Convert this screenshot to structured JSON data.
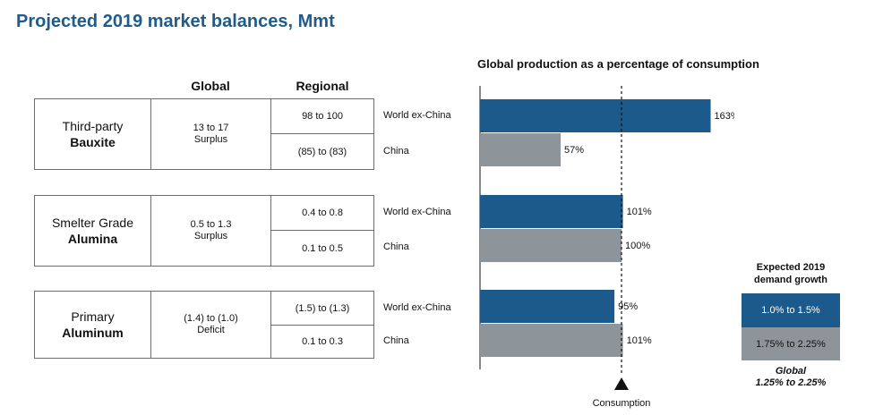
{
  "title": "Projected 2019 market balances, Mmt",
  "table": {
    "col_global": "Global",
    "col_regional": "Regional",
    "groups": [
      {
        "name1": "Third-party",
        "name2": "Bauxite",
        "global1": "13 to 17",
        "global2": "Surplus",
        "regional": [
          "98 to 100",
          "(85) to (83)"
        ],
        "regions": [
          "World ex-China",
          "China"
        ]
      },
      {
        "name1": "Smelter Grade",
        "name2": "Alumina",
        "global1": "0.5 to 1.3",
        "global2": "Surplus",
        "regional": [
          "0.4 to 0.8",
          "0.1 to 0.5"
        ],
        "regions": [
          "World ex-China",
          "China"
        ]
      },
      {
        "name1": "Primary",
        "name2": "Aluminum",
        "global1": "(1.4) to (1.0)",
        "global2": "Deficit",
        "regional": [
          "(1.5) to (1.3)",
          "0.1 to 0.3"
        ],
        "regions": [
          "World ex-China",
          "China"
        ]
      }
    ]
  },
  "chart_data": {
    "type": "bar",
    "title": "Global production as a percentage of consumption",
    "categories": [
      "Bauxite World ex-China",
      "Bauxite China",
      "Alumina World ex-China",
      "Alumina China",
      "Aluminum World ex-China",
      "Aluminum China"
    ],
    "values": [
      163,
      57,
      101,
      100,
      95,
      101
    ],
    "labels": [
      "163%",
      "57%",
      "101%",
      "100%",
      "95%",
      "101%"
    ],
    "reference_value": 100,
    "reference_label": "Consumption",
    "colors": {
      "world_ex_china": "#1b5a8a",
      "china": "#8e959a"
    }
  },
  "legend": {
    "heading1": "Expected 2019",
    "heading2": "demand growth",
    "world_ex_china": "1.0% to 1.5%",
    "china": "1.75% to 2.25%",
    "global1": "Global",
    "global2": "1.25% to 2.25%"
  }
}
